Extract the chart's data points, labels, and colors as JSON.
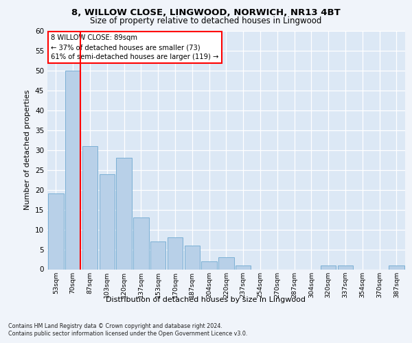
{
  "title1": "8, WILLOW CLOSE, LINGWOOD, NORWICH, NR13 4BT",
  "title2": "Size of property relative to detached houses in Lingwood",
  "xlabel": "Distribution of detached houses by size in Lingwood",
  "ylabel": "Number of detached properties",
  "categories": [
    "53sqm",
    "70sqm",
    "87sqm",
    "103sqm",
    "120sqm",
    "137sqm",
    "153sqm",
    "170sqm",
    "187sqm",
    "204sqm",
    "220sqm",
    "237sqm",
    "254sqm",
    "270sqm",
    "287sqm",
    "304sqm",
    "320sqm",
    "337sqm",
    "354sqm",
    "370sqm",
    "387sqm"
  ],
  "values": [
    19,
    50,
    31,
    24,
    28,
    13,
    7,
    8,
    6,
    2,
    3,
    1,
    0,
    0,
    0,
    0,
    1,
    1,
    0,
    0,
    1
  ],
  "bar_color": "#b8d0e8",
  "bar_edge_color": "#7aafd4",
  "annotation_title": "8 WILLOW CLOSE: 89sqm",
  "annotation_line1": "← 37% of detached houses are smaller (73)",
  "annotation_line2": "61% of semi-detached houses are larger (119) →",
  "ylim": [
    0,
    60
  ],
  "yticks": [
    0,
    5,
    10,
    15,
    20,
    25,
    30,
    35,
    40,
    45,
    50,
    55,
    60
  ],
  "footnote1": "Contains HM Land Registry data © Crown copyright and database right 2024.",
  "footnote2": "Contains public sector information licensed under the Open Government Licence v3.0.",
  "fig_bg_color": "#f0f4fa",
  "plot_bg_color": "#dce8f5"
}
